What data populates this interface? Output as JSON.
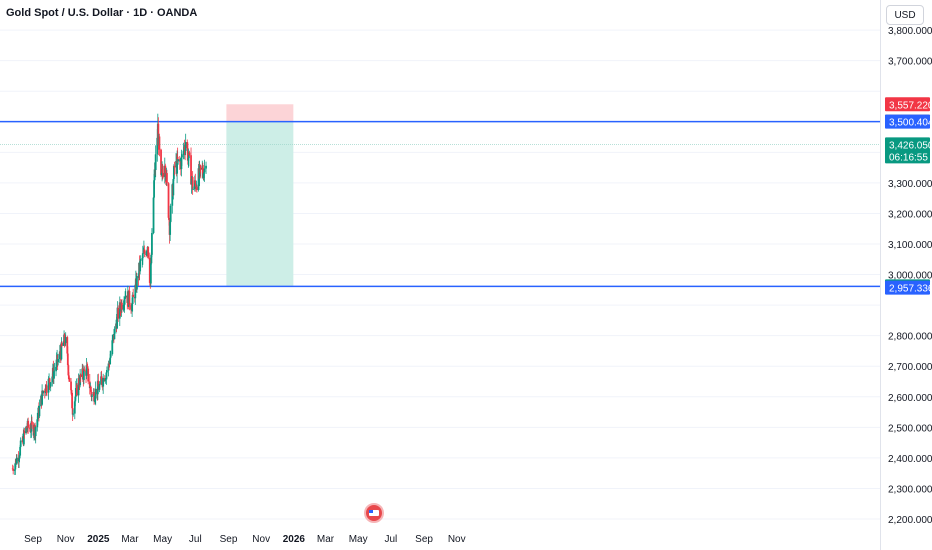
{
  "header": {
    "symbol_title": "Gold Spot / U.S. Dollar · 1D · OANDA",
    "currency_label": "USD"
  },
  "colors": {
    "up": "#089981",
    "down": "#f23645",
    "level_line": "#2962ff",
    "profit_zone": "#cdeee7",
    "loss_zone": "#fcd4d7",
    "grid": "#f0f3fa"
  },
  "events": {
    "flag_icon": "us-flag-icon"
  },
  "chart_data": {
    "type": "candlestick",
    "title": "Gold Spot / U.S. Dollar · 1D · OANDA",
    "ylim": [
      2200,
      3820
    ],
    "y_ticks": [
      "3,800.000",
      "3,700.000",
      "3,300.000",
      "3,200.000",
      "3,100.000",
      "3,000.000",
      "2,800.000",
      "2,700.000",
      "2,600.000",
      "2,500.000",
      "2,400.000",
      "2,300.000",
      "2,200.000"
    ],
    "y_tick_values": [
      3800,
      3700,
      3300,
      3200,
      3100,
      3000,
      2800,
      2700,
      2600,
      2500,
      2400,
      2300,
      2200
    ],
    "x_ticks": [
      "Sep",
      "Nov",
      "2025",
      "Mar",
      "May",
      "Jul",
      "Sep",
      "Nov",
      "2026",
      "Mar",
      "May",
      "Jul",
      "Sep",
      "Nov"
    ],
    "x_tick_dates": [
      "2024-09-01",
      "2024-11-01",
      "2025-01-01",
      "2025-03-01",
      "2025-05-01",
      "2025-07-01",
      "2025-09-01",
      "2025-11-01",
      "2026-01-01",
      "2026-03-01",
      "2026-05-01",
      "2026-07-01",
      "2026-09-01",
      "2026-11-01"
    ],
    "bold_x_ticks": [
      "2025",
      "2026"
    ],
    "close_path": [
      [
        "2024-07-25",
        2365
      ],
      [
        "2024-08-05",
        2410
      ],
      [
        "2024-08-20",
        2500
      ],
      [
        "2024-09-05",
        2495
      ],
      [
        "2024-09-20",
        2620
      ],
      [
        "2024-10-05",
        2660
      ],
      [
        "2024-10-20",
        2730
      ],
      [
        "2024-10-31",
        2790
      ],
      [
        "2024-11-14",
        2560
      ],
      [
        "2024-11-25",
        2650
      ],
      [
        "2024-12-10",
        2690
      ],
      [
        "2024-12-20",
        2600
      ],
      [
        "2025-01-05",
        2640
      ],
      [
        "2025-01-20",
        2700
      ],
      [
        "2025-02-05",
        2860
      ],
      [
        "2025-02-20",
        2940
      ],
      [
        "2025-03-05",
        2900
      ],
      [
        "2025-03-20",
        3030
      ],
      [
        "2025-04-03",
        3100
      ],
      [
        "2025-04-08",
        2970
      ],
      [
        "2025-04-15",
        3300
      ],
      [
        "2025-04-22",
        3480
      ],
      [
        "2025-04-28",
        3300
      ],
      [
        "2025-05-05",
        3380
      ],
      [
        "2025-05-14",
        3160
      ],
      [
        "2025-05-23",
        3350
      ],
      [
        "2025-06-05",
        3370
      ],
      [
        "2025-06-13",
        3440
      ],
      [
        "2025-06-27",
        3280
      ],
      [
        "2025-07-10",
        3330
      ],
      [
        "2025-07-20",
        3350
      ],
      [
        "2025-07-22",
        3426
      ]
    ],
    "levels": [
      {
        "label": "3,500.404",
        "value": 3500.404,
        "badge_color": "#2962ff"
      },
      {
        "label": "2,961.479",
        "value": 2961.479,
        "badge_color": "#089981"
      }
    ],
    "price_badges": [
      {
        "label": "3,557.220",
        "value": 3557.22,
        "color": "#f23645"
      },
      {
        "label": "3,501.069",
        "value": 3501.069,
        "color": "#787b86"
      },
      {
        "label": "3,500.404",
        "value": 3500.404,
        "color": "#2962ff"
      },
      {
        "label": "3,426.050",
        "sublabel": "06:16:55",
        "value": 3426.05,
        "color": "#089981"
      },
      {
        "label": "2,961.479",
        "value": 2961.479,
        "color": "#089981"
      },
      {
        "label": "2,957.336",
        "value": 2957.336,
        "color": "#2962ff"
      }
    ],
    "last_price": {
      "value": 3426.05,
      "label": "3,426.050",
      "countdown": "06:16:55"
    },
    "position": {
      "type": "short",
      "start": "2025-08-28",
      "end": "2025-12-31",
      "entry": 3500.404,
      "stop": 3557.22,
      "target": 2961.479
    }
  }
}
